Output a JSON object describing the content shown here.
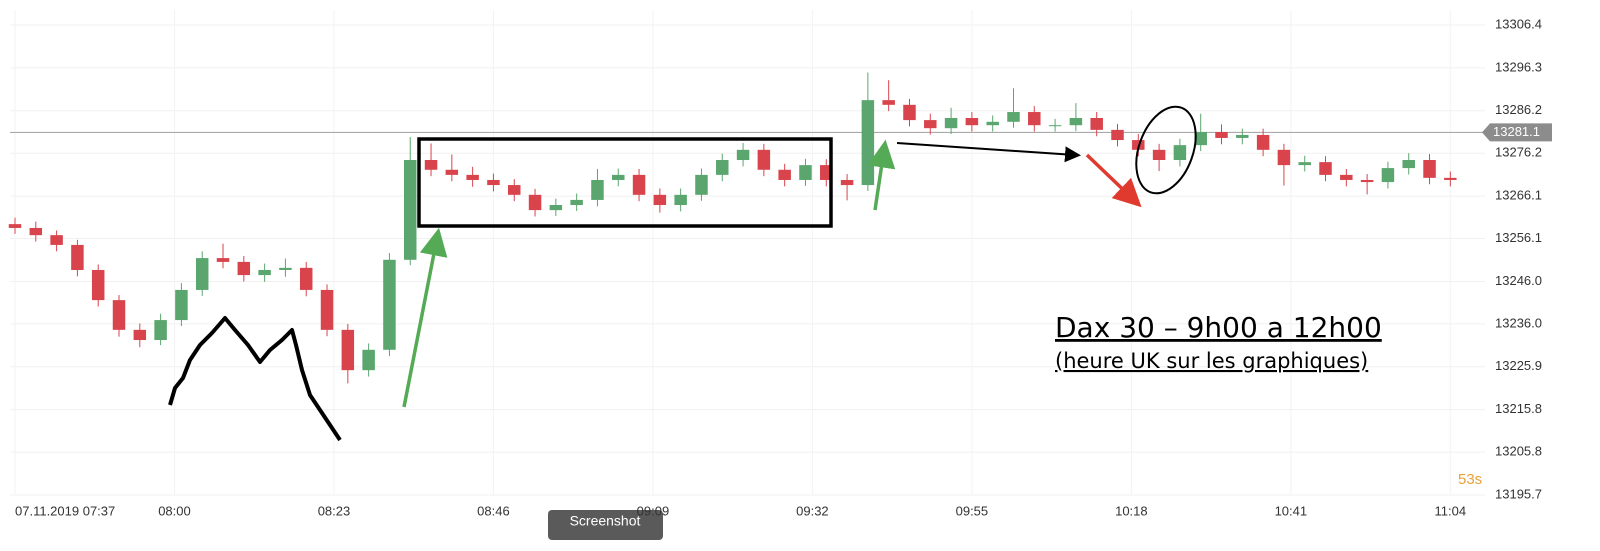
{
  "chart_data": {
    "type": "candlestick",
    "x": [
      0,
      3,
      6,
      9,
      12,
      15,
      18,
      21,
      24,
      27,
      30,
      33,
      36,
      39,
      42,
      45,
      48,
      51,
      54,
      57,
      60,
      63,
      66,
      69,
      72,
      75,
      78,
      81,
      84,
      87,
      90,
      93,
      96,
      99,
      102,
      105,
      108,
      111,
      114,
      117,
      120,
      123,
      126,
      129,
      132,
      135,
      138,
      141,
      144,
      147,
      150,
      153,
      156,
      159,
      162,
      165,
      168,
      171,
      174,
      177,
      180,
      183,
      186,
      189,
      192,
      195,
      198,
      201,
      204,
      207
    ],
    "open": [
      13259.5,
      13258.6,
      13256.9,
      13254.6,
      13248.7,
      13241.6,
      13234.6,
      13232.2,
      13236.9,
      13244.0,
      13251.5,
      13250.6,
      13247.5,
      13248.7,
      13249.2,
      13244.0,
      13234.6,
      13225.1,
      13229.9,
      13251.1,
      13274.6,
      13272.3,
      13271.1,
      13269.9,
      13268.7,
      13266.4,
      13262.8,
      13264.0,
      13265.2,
      13269.9,
      13271.1,
      13266.4,
      13264.0,
      13266.4,
      13271.1,
      13274.6,
      13277.0,
      13272.3,
      13269.9,
      13273.4,
      13269.9,
      13268.7,
      13288.7,
      13287.6,
      13284.0,
      13282.1,
      13284.5,
      13282.8,
      13283.6,
      13285.9,
      13282.8,
      13282.8,
      13284.5,
      13281.7,
      13279.3,
      13277.0,
      13274.6,
      13278.1,
      13281.2,
      13279.8,
      13280.5,
      13277.0,
      13273.4,
      13274.1,
      13271.1,
      13269.9,
      13269.4,
      13272.7,
      13274.6,
      13270.4
    ],
    "high": [
      13261.0,
      13260.1,
      13258.0,
      13255.8,
      13250.0,
      13242.8,
      13236.1,
      13238.4,
      13245.6,
      13253.1,
      13254.9,
      13252.0,
      13250.2,
      13251.4,
      13250.6,
      13245.3,
      13236.0,
      13231.4,
      13252.7,
      13280.0,
      13278.5,
      13275.9,
      13273.0,
      13271.4,
      13270.1,
      13267.8,
      13265.5,
      13266.7,
      13272.5,
      13272.6,
      13272.5,
      13267.9,
      13267.9,
      13272.6,
      13276.1,
      13278.6,
      13278.4,
      13273.7,
      13274.9,
      13274.8,
      13271.3,
      13295.2,
      13293.4,
      13289.0,
      13285.5,
      13286.9,
      13285.9,
      13285.1,
      13291.5,
      13287.3,
      13284.3,
      13288.0,
      13285.9,
      13283.1,
      13280.7,
      13278.4,
      13279.6,
      13285.5,
      13283.0,
      13282.0,
      13282.0,
      13278.4,
      13275.6,
      13275.5,
      13272.5,
      13271.3,
      13274.2,
      13276.2,
      13276.0,
      13271.9
    ],
    "low": [
      13257.2,
      13255.4,
      13253.1,
      13247.2,
      13240.1,
      13233.0,
      13230.5,
      13231.0,
      13235.5,
      13242.6,
      13249.1,
      13246.0,
      13245.9,
      13247.1,
      13242.5,
      13233.1,
      13222.0,
      13223.6,
      13228.4,
      13249.8,
      13270.8,
      13269.6,
      13268.3,
      13267.2,
      13264.9,
      13261.3,
      13261.4,
      13262.6,
      13263.7,
      13268.4,
      13264.9,
      13262.2,
      13262.5,
      13265.0,
      13269.6,
      13273.1,
      13270.8,
      13268.4,
      13268.5,
      13268.4,
      13265.1,
      13267.3,
      13286.1,
      13282.5,
      13280.6,
      13280.7,
      13281.3,
      13281.3,
      13282.2,
      13281.3,
      13281.3,
      13281.4,
      13280.2,
      13277.8,
      13275.5,
      13272.0,
      13273.1,
      13276.7,
      13278.3,
      13278.3,
      13275.5,
      13268.6,
      13271.9,
      13269.6,
      13268.4,
      13266.5,
      13267.9,
      13271.2,
      13268.9,
      13268.4
    ],
    "close": [
      13258.6,
      13256.9,
      13254.6,
      13248.7,
      13241.6,
      13234.6,
      13232.2,
      13236.9,
      13244.0,
      13251.5,
      13250.6,
      13247.5,
      13248.7,
      13249.2,
      13244.0,
      13234.6,
      13225.1,
      13229.9,
      13251.1,
      13274.6,
      13272.3,
      13271.1,
      13269.9,
      13268.7,
      13266.4,
      13262.8,
      13264.0,
      13265.2,
      13269.9,
      13271.1,
      13266.4,
      13264.0,
      13266.4,
      13271.1,
      13274.6,
      13277.0,
      13272.3,
      13269.9,
      13273.4,
      13269.9,
      13268.7,
      13288.7,
      13287.6,
      13284.0,
      13282.1,
      13284.5,
      13282.8,
      13283.6,
      13285.9,
      13282.8,
      13282.8,
      13284.5,
      13281.7,
      13279.3,
      13277.0,
      13274.6,
      13278.1,
      13281.2,
      13279.8,
      13280.5,
      13277.0,
      13273.4,
      13274.1,
      13271.1,
      13269.9,
      13269.4,
      13272.7,
      13274.6,
      13270.4,
      13269.9
    ],
    "up_color": "#5aa66e",
    "down_color": "#d9434c",
    "xlim": [
      0,
      212
    ],
    "xticks": [
      {
        "value": 0,
        "label": "07.11.2019 07:37"
      },
      {
        "value": 23,
        "label": "08:00"
      },
      {
        "value": 46,
        "label": "08:23"
      },
      {
        "value": 69,
        "label": "08:46"
      },
      {
        "value": 92,
        "label": "09:09"
      },
      {
        "value": 115,
        "label": "09:32"
      },
      {
        "value": 138,
        "label": "09:55"
      },
      {
        "value": 161,
        "label": "10:18"
      },
      {
        "value": 184,
        "label": "10:41"
      },
      {
        "value": 207,
        "label": "11:04"
      }
    ],
    "ylim": [
      13195.7,
      13306.4
    ],
    "yticks": [
      13195.7,
      13205.8,
      13215.8,
      13225.9,
      {
        "value": 13236,
        "label": "13236.0"
      },
      {
        "value": 13246,
        "label": "13246.0"
      },
      13256.1,
      13266.1,
      13276.2,
      13286.2,
      13296.3,
      13306.4
    ],
    "grid": true,
    "current_price": 13281.1,
    "countdown": "53s",
    "annotations": [
      "Dax 30 – 9h00 a 12h00",
      "(heure UK sur les graphiques)"
    ]
  },
  "toolbar": {
    "button": "Screenshot"
  }
}
